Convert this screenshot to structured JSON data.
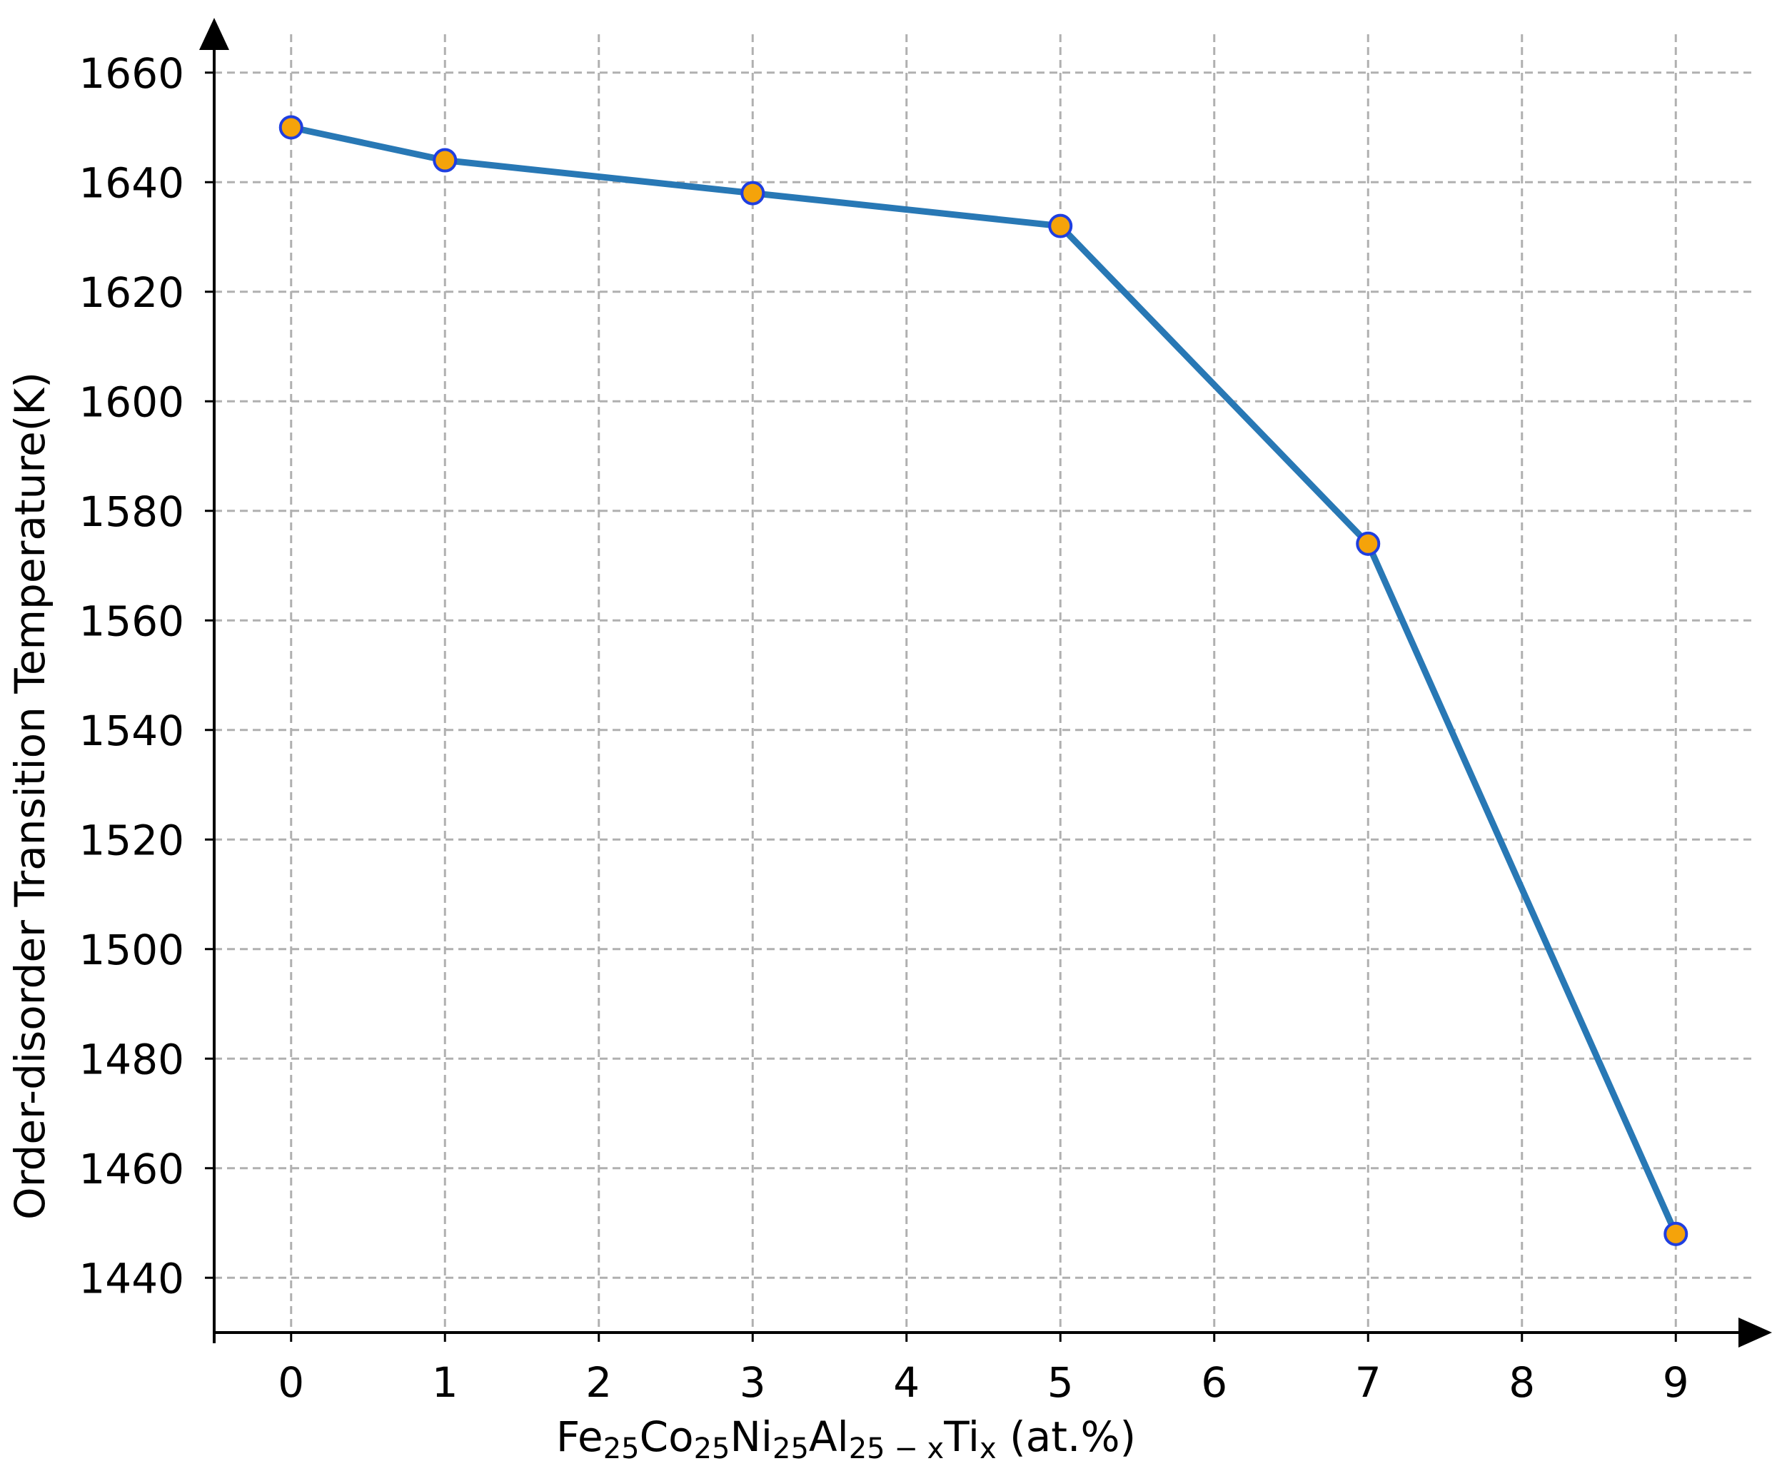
{
  "chart_data": {
    "type": "line",
    "x": [
      0,
      1,
      3,
      5,
      7,
      9
    ],
    "series": [
      {
        "values": [
          1650,
          1644,
          1638,
          1632,
          1574,
          1448
        ]
      }
    ],
    "xlabel": {
      "parts": [
        {
          "text": "Fe",
          "sub": false
        },
        {
          "text": "25",
          "sub": true
        },
        {
          "text": "Co",
          "sub": false
        },
        {
          "text": "25",
          "sub": true
        },
        {
          "text": "Ni",
          "sub": false
        },
        {
          "text": "25",
          "sub": true
        },
        {
          "text": "Al",
          "sub": false
        },
        {
          "text": "25 − x",
          "sub": true
        },
        {
          "text": "Ti",
          "sub": false
        },
        {
          "text": "x",
          "sub": true
        },
        {
          "text": " (at.%)",
          "sub": false
        }
      ]
    },
    "ylabel": "Order-disorder Transition Temperature(K)",
    "xticks": [
      "0",
      "1",
      "2",
      "3",
      "4",
      "5",
      "6",
      "7",
      "8",
      "9"
    ],
    "yticks": [
      "1440",
      "1460",
      "1480",
      "1500",
      "1520",
      "1540",
      "1560",
      "1580",
      "1600",
      "1620",
      "1640",
      "1660"
    ],
    "xlim": [
      -0.5,
      9.5
    ],
    "ylim": [
      1430,
      1670
    ],
    "grid": true,
    "grid_style": "dashed",
    "colors": {
      "line": "#2878b5",
      "marker_fill": "#f5a30a",
      "marker_edge": "#1f3fe0",
      "grid": "#b0b0b0",
      "axis": "#000000"
    }
  }
}
